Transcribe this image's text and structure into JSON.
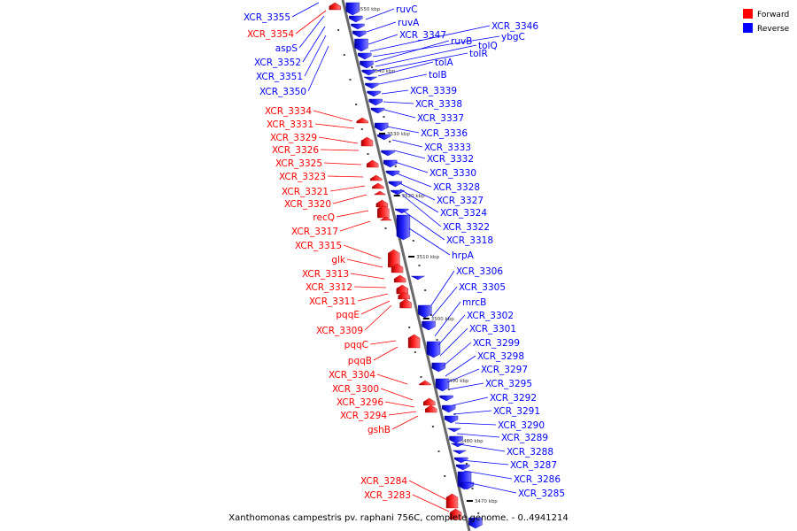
{
  "caption": "Xanthomonas campestris pv. raphani 756C, complete genome. - 0..4941214",
  "colors": {
    "forward": "#ff0000",
    "reverse": "#0000ff",
    "axis": "#777777"
  },
  "legend": [
    {
      "label": "Forward",
      "color": "#ff0000"
    },
    {
      "label": "Reverse",
      "color": "#0000ff"
    }
  ],
  "ticks": [
    "3550 kbp",
    "3540 kbp",
    "3530 kbp",
    "3520 kbp",
    "3510 kbp",
    "3500 kbp",
    "3490 kbp",
    "3480 kbp",
    "3470 kbp"
  ],
  "genes_reverse": [
    "XCR_3355",
    "ruvC",
    "ruvA",
    "XCR_3347",
    "XCR_3346",
    "ybgC",
    "ruvB",
    "tolQ",
    "tolR",
    "tolA",
    "tolB",
    "XCR_3339",
    "XCR_3338",
    "XCR_3337",
    "XCR_3336",
    "XCR_3333",
    "XCR_3332",
    "XCR_3330",
    "XCR_3328",
    "XCR_3327",
    "XCR_3324",
    "XCR_3322",
    "XCR_3318",
    "hrpA",
    "XCR_3306",
    "XCR_3305",
    "mrcB",
    "XCR_3302",
    "XCR_3301",
    "XCR_3299",
    "XCR_3298",
    "XCR_3297",
    "XCR_3295",
    "XCR_3292",
    "XCR_3291",
    "XCR_3290",
    "XCR_3289",
    "XCR_3288",
    "XCR_3287",
    "XCR_3286",
    "XCR_3285",
    "XCR_3352",
    "XCR_3351",
    "XCR_3350",
    "aspS"
  ],
  "genes_forward": [
    "XCR_3354",
    "XCR_3334",
    "XCR_3331",
    "XCR_3329",
    "XCR_3326",
    "XCR_3325",
    "XCR_3323",
    "XCR_3321",
    "XCR_3320",
    "recQ",
    "XCR_3317",
    "XCR_3315",
    "glk",
    "XCR_3313",
    "XCR_3312",
    "XCR_3311",
    "pqqE",
    "XCR_3309",
    "pqqC",
    "pqqB",
    "XCR_3304",
    "XCR_3300",
    "XCR_3296",
    "XCR_3294",
    "gshB",
    "XCR_3284",
    "XCR_3283"
  ]
}
